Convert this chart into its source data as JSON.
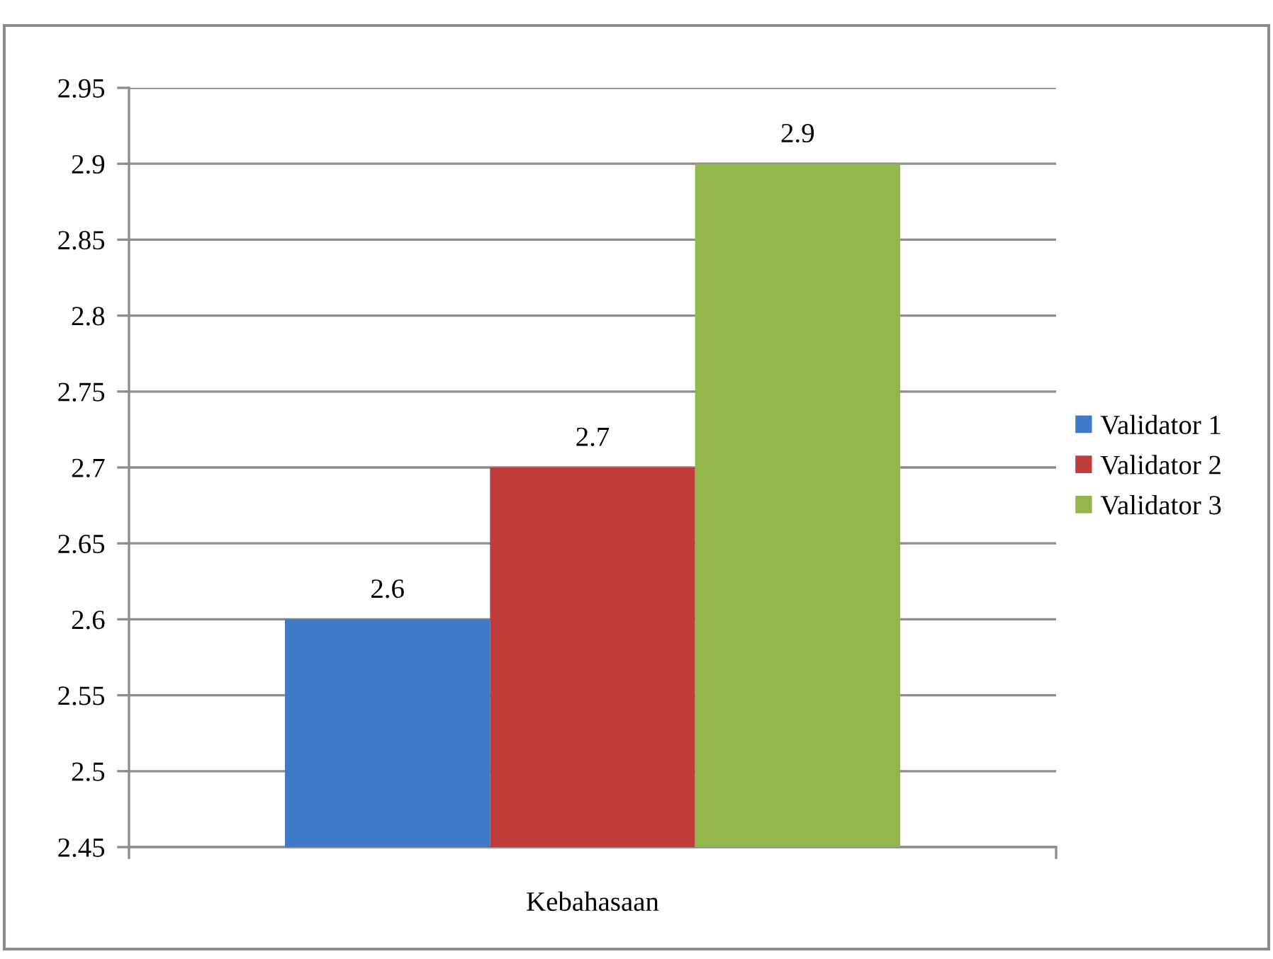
{
  "chart_data": {
    "type": "bar",
    "categories": [
      "Kebahasaan"
    ],
    "series": [
      {
        "name": "Validator 1",
        "color": "#3f7ac8",
        "values": [
          2.6
        ]
      },
      {
        "name": "Validator 2",
        "color": "#bf3c3a",
        "values": [
          2.7
        ]
      },
      {
        "name": "Validator 3",
        "color": "#92b649",
        "values": [
          2.9
        ]
      }
    ],
    "ylim": [
      2.45,
      2.95
    ],
    "yticks": [
      2.45,
      2.5,
      2.55,
      2.6,
      2.65,
      2.7,
      2.75,
      2.8,
      2.85,
      2.9,
      2.95
    ],
    "grid": "y",
    "legend": "right",
    "data_labels": true
  }
}
